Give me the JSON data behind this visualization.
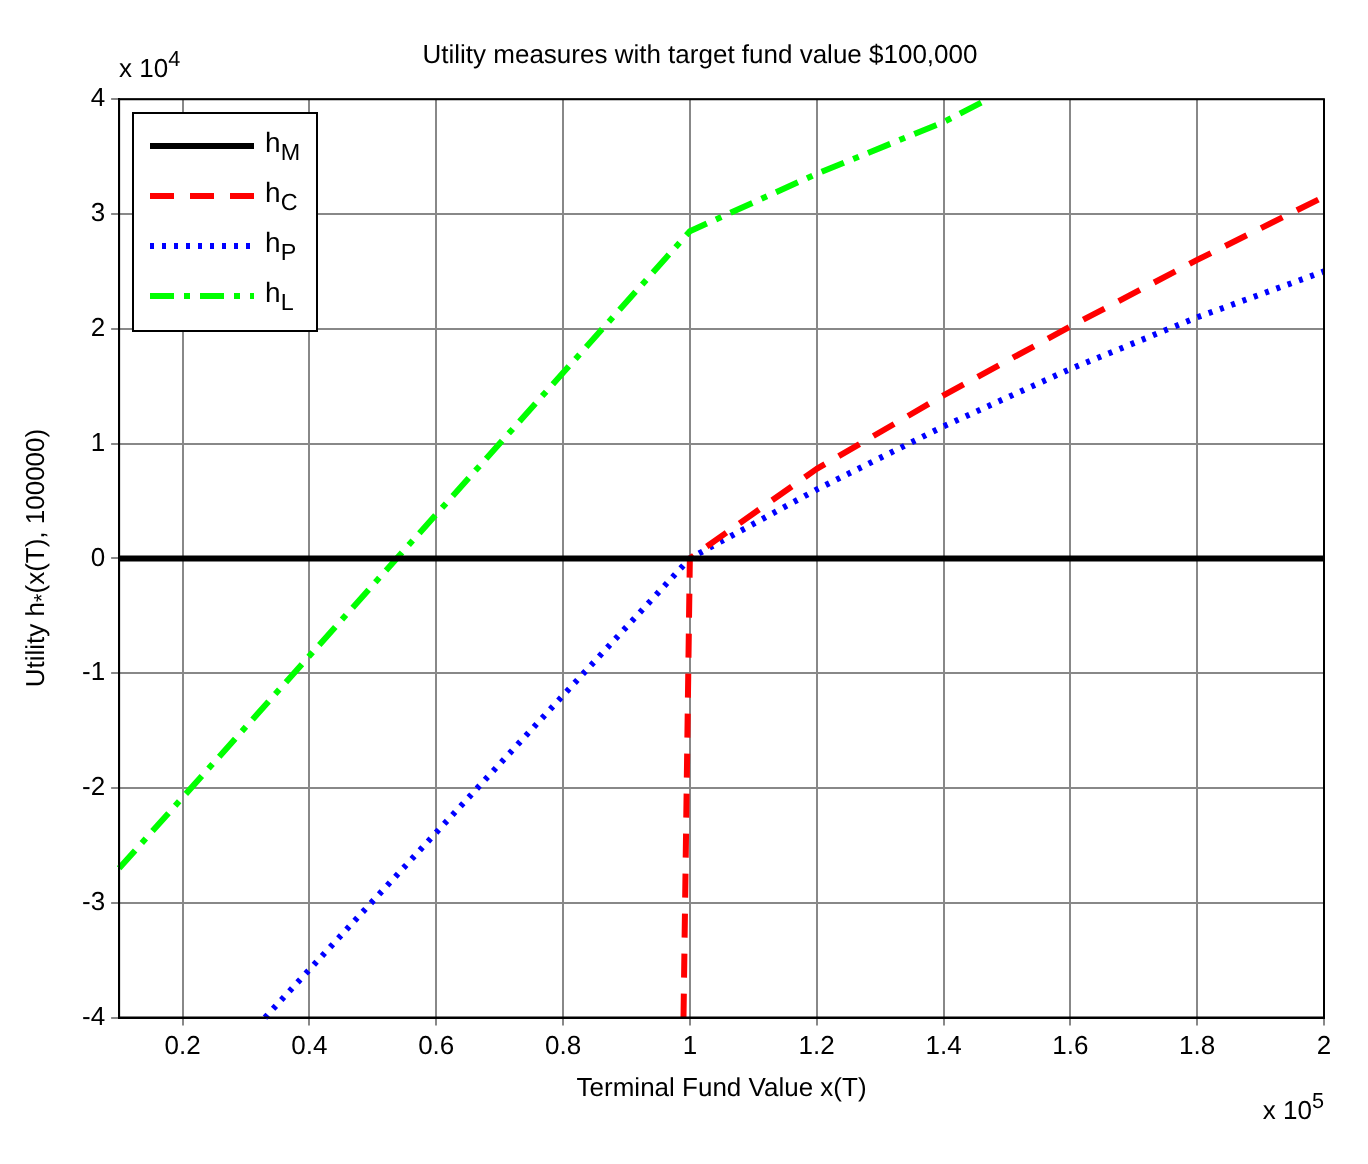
{
  "chart_data": {
    "type": "line",
    "title": "Utility measures with target fund value $100,000",
    "xlabel": "Terminal Fund Value x(T)",
    "ylabel": "Utility h$_{*}$(x(T), 100000)",
    "annotations": [
      "x 10$^{4}$",
      "x 10$^{5}$"
    ],
    "xlim": [
      0.1,
      2
    ],
    "xticks": [
      0.2,
      0.4,
      0.6,
      0.8,
      1,
      1.2,
      1.4,
      1.6,
      1.8,
      2
    ],
    "ylim": [
      -4,
      4
    ],
    "yticks": [
      -4,
      -3,
      -2,
      -1,
      0,
      1,
      2,
      3,
      4
    ],
    "grid": true,
    "legend": "top left",
    "marker": "none",
    "series": [
      {
        "name": "h$_{M}$",
        "color": "#000000",
        "line_style": "solid",
        "x": [
          0.1,
          2
        ],
        "values": [
          0,
          0
        ]
      },
      {
        "name": "h$_{C}$",
        "color": "#ff0000",
        "line_style": "dashed",
        "x": [
          0.99,
          1,
          1.2,
          1.4,
          1.6,
          1.8,
          2
        ],
        "values": [
          -4,
          0,
          0.78,
          1.42,
          2.02,
          2.6,
          3.15
        ]
      },
      {
        "name": "h$_{P}$",
        "color": "#0000ff",
        "line_style": "dotted",
        "x": [
          0.33,
          1,
          1.2,
          1.4,
          1.6,
          1.8,
          2
        ],
        "values": [
          -4,
          0,
          0.6,
          1.15,
          1.65,
          2.1,
          2.5
        ]
      },
      {
        "name": "h$_{L}$",
        "color": "#00ff00",
        "line_style": "dashdot",
        "x": [
          0.1,
          1,
          1.2,
          1.4,
          1.47
        ],
        "values": [
          -2.7,
          2.85,
          3.35,
          3.8,
          4
        ]
      }
    ]
  }
}
